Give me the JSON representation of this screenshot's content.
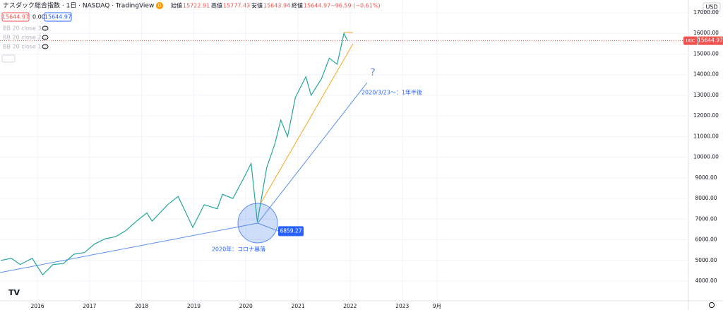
{
  "header": {
    "title": "ナスダック総合指数 · 1日 · NASDAQ · TradingView",
    "interval_badge": "D",
    "ohlc": [
      {
        "label": "始値",
        "value": 15722.91
      },
      {
        "label": "高値",
        "value": 15777.43
      },
      {
        "label": "安値",
        "value": 15643.94
      },
      {
        "label": "終値",
        "value": 15644.97
      }
    ],
    "change": "−96.59 (−0.61%)",
    "bid": 15644.97,
    "spread": "0.00",
    "ask": 15644.97,
    "indicators": [
      "BB 20 close 3 0",
      "BB 20 close 2 0",
      "BB 20 close 1 0"
    ],
    "currency": "USD"
  },
  "chart_data": {
    "type": "line",
    "x": [
      2015.3,
      2015.5,
      2015.67,
      2015.9,
      2016.1,
      2016.3,
      2016.5,
      2016.7,
      2016.9,
      2017.1,
      2017.3,
      2017.5,
      2017.7,
      2017.9,
      2018.1,
      2018.2,
      2018.5,
      2018.7,
      2018.85,
      2018.98,
      2019.2,
      2019.45,
      2019.55,
      2019.75,
      2019.95,
      2020.1,
      2020.22,
      2020.4,
      2020.55,
      2020.67,
      2020.8,
      2020.95,
      2021.15,
      2021.25,
      2021.45,
      2021.6,
      2021.75,
      2021.88,
      2021.95
    ],
    "series": [
      {
        "name": "IXIC",
        "color": "#26a69a",
        "values": [
          5000,
          5100,
          4800,
          5100,
          4300,
          4800,
          4850,
          5300,
          5380,
          5800,
          6050,
          6150,
          6450,
          6900,
          7300,
          6900,
          7700,
          8100,
          7300,
          6600,
          7700,
          7500,
          8200,
          8000,
          8950,
          9700,
          6860,
          9500,
          10600,
          11800,
          11000,
          12900,
          13900,
          13000,
          13800,
          14800,
          14500,
          16000,
          15644.97
        ]
      }
    ],
    "xlim": [
      2015.282,
      2028.49
    ],
    "xticks": [
      2016,
      2017,
      2018,
      2019,
      2020,
      2021,
      2022,
      2023,
      {
        "value": 2023.667,
        "label": "9月"
      }
    ],
    "ylim": [
      3042,
      17616
    ],
    "yticks": [
      {
        "value": 4000,
        "label": "4000.00"
      },
      {
        "value": 5000,
        "label": "5000.00"
      },
      {
        "value": 6000,
        "label": "6000.00"
      },
      {
        "value": 7000,
        "label": "7000.00"
      },
      {
        "value": 8000,
        "label": "8000.00"
      },
      {
        "value": 9000,
        "label": "9000.00"
      },
      {
        "value": 10000,
        "label": "10000.00"
      },
      {
        "value": 11000,
        "label": "11000.00"
      },
      {
        "value": 12000,
        "label": "12000.00"
      },
      {
        "value": 13000,
        "label": "13000.00"
      },
      {
        "value": 14000,
        "label": "14000.00"
      },
      {
        "value": 15000,
        "label": "15000.00"
      },
      {
        "value": 16000,
        "label": "16000.00"
      },
      {
        "value": 17000,
        "label": "17000.00"
      }
    ],
    "grid": true,
    "symbol_tag": "IXIC",
    "last_price": 15644.97,
    "annotations": [
      {
        "text": "?"
      },
      {
        "text": "2020/3/23〜：1年半後"
      },
      {
        "text": "2020年：コロナ暴落"
      }
    ],
    "low_marker": 6859.27
  }
}
